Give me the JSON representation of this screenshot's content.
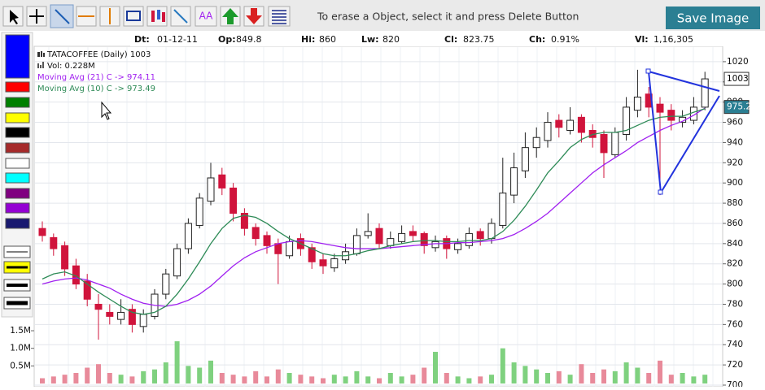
{
  "toolbar": {
    "hint": "To erase a Object, select it and press Delete Button",
    "button": "Save Image"
  },
  "info": [
    {
      "label": "Dt:",
      "value": "01-12-11"
    },
    {
      "label": "Op:",
      "value": "849.8"
    },
    {
      "label": "Hi:",
      "value": "860"
    },
    {
      "label": "Lw:",
      "value": "820"
    },
    {
      "label": "Cl:",
      "value": "823.75"
    },
    {
      "label": "Ch:",
      "value": "0.91%"
    },
    {
      "label": "Vl:",
      "value": "1,16,305"
    }
  ],
  "chart_data": {
    "type": "candlestick",
    "title": "TATACOFFEE (Daily) 1003",
    "volume_label": "Vol: 0.228M",
    "ylim": [
      700,
      1030
    ],
    "yticks": [
      700,
      720,
      740,
      760,
      780,
      800,
      820,
      840,
      860,
      880,
      900,
      920,
      940,
      960,
      980,
      1000,
      1020
    ],
    "grid": true,
    "up_color": "#222222",
    "down_color": "#d0143c",
    "last_price": 1003,
    "ma_marker": 975.2,
    "ohlc": [
      [
        855,
        862,
        842,
        848
      ],
      [
        846,
        850,
        828,
        835
      ],
      [
        838,
        842,
        808,
        815
      ],
      [
        818,
        825,
        795,
        800
      ],
      [
        803,
        810,
        778,
        785
      ],
      [
        780,
        790,
        745,
        775
      ],
      [
        772,
        780,
        760,
        768
      ],
      [
        765,
        785,
        760,
        772
      ],
      [
        775,
        780,
        752,
        760
      ],
      [
        758,
        775,
        752,
        770
      ],
      [
        768,
        795,
        765,
        790
      ],
      [
        790,
        815,
        785,
        810
      ],
      [
        808,
        840,
        805,
        835
      ],
      [
        835,
        865,
        830,
        860
      ],
      [
        858,
        890,
        855,
        885
      ],
      [
        882,
        920,
        878,
        905
      ],
      [
        908,
        915,
        888,
        895
      ],
      [
        895,
        900,
        862,
        870
      ],
      [
        870,
        875,
        848,
        855
      ],
      [
        856,
        860,
        838,
        845
      ],
      [
        848,
        852,
        830,
        838
      ],
      [
        840,
        845,
        800,
        830
      ],
      [
        828,
        848,
        825,
        842
      ],
      [
        845,
        850,
        828,
        835
      ],
      [
        836,
        840,
        815,
        822
      ],
      [
        824,
        830,
        810,
        818
      ],
      [
        816,
        830,
        812,
        825
      ],
      [
        824,
        840,
        820,
        832
      ],
      [
        830,
        855,
        828,
        848
      ],
      [
        848,
        870,
        845,
        852
      ],
      [
        855,
        860,
        835,
        840
      ],
      [
        838,
        852,
        835,
        845
      ],
      [
        842,
        858,
        840,
        850
      ],
      [
        852,
        858,
        842,
        848
      ],
      [
        850,
        852,
        830,
        838
      ],
      [
        836,
        848,
        832,
        842
      ],
      [
        845,
        848,
        825,
        835
      ],
      [
        834,
        845,
        830,
        840
      ],
      [
        838,
        856,
        835,
        850
      ],
      [
        852,
        855,
        838,
        845
      ],
      [
        845,
        865,
        840,
        860
      ],
      [
        858,
        925,
        855,
        890
      ],
      [
        888,
        930,
        880,
        915
      ],
      [
        912,
        950,
        905,
        935
      ],
      [
        935,
        955,
        925,
        945
      ],
      [
        942,
        970,
        935,
        960
      ],
      [
        962,
        968,
        945,
        955
      ],
      [
        952,
        975,
        948,
        962
      ],
      [
        965,
        968,
        940,
        950
      ],
      [
        952,
        958,
        935,
        945
      ],
      [
        948,
        952,
        905,
        930
      ],
      [
        928,
        955,
        925,
        950
      ],
      [
        948,
        985,
        942,
        975
      ],
      [
        972,
        1012,
        965,
        985
      ],
      [
        988,
        995,
        965,
        975
      ],
      [
        978,
        985,
        888,
        970
      ],
      [
        972,
        978,
        952,
        962
      ],
      [
        960,
        972,
        955,
        965
      ],
      [
        962,
        985,
        958,
        975
      ],
      [
        975,
        1010,
        972,
        1003
      ]
    ],
    "series": [
      {
        "name": "Moving Avg (21) C -> 974.11",
        "color": "#a020f0",
        "values": [
          800,
          803,
          805,
          806,
          804,
          800,
          796,
          790,
          785,
          781,
          779,
          778,
          780,
          784,
          790,
          798,
          808,
          818,
          826,
          832,
          836,
          840,
          842,
          843,
          842,
          840,
          838,
          836,
          835,
          835,
          835,
          836,
          837,
          838,
          839,
          840,
          840,
          841,
          841,
          842,
          843,
          845,
          849,
          855,
          862,
          870,
          880,
          890,
          900,
          910,
          918,
          925,
          932,
          940,
          946,
          952,
          957,
          961,
          967,
          974.11
        ]
      },
      {
        "name": "Moving Avg (10) C -> 973.49",
        "color": "#2e8b57",
        "values": [
          805,
          810,
          812,
          808,
          800,
          792,
          785,
          778,
          772,
          770,
          772,
          778,
          790,
          805,
          822,
          840,
          855,
          865,
          868,
          866,
          860,
          852,
          845,
          840,
          835,
          830,
          828,
          828,
          830,
          833,
          835,
          838,
          840,
          842,
          843,
          843,
          842,
          842,
          843,
          843,
          845,
          852,
          863,
          877,
          893,
          910,
          922,
          935,
          943,
          948,
          950,
          950,
          952,
          957,
          962,
          965,
          966,
          966,
          970,
          973.49
        ]
      }
    ],
    "volume": {
      "ylim": [
        0,
        1.6
      ],
      "yticks": [
        {
          "value": 0.5,
          "label": "0.5M"
        },
        {
          "value": 1,
          "label": "1.0M"
        },
        {
          "value": 1.5,
          "label": "1.5M"
        }
      ],
      "up_color": "#7fd17f",
      "down_color": "#e88a9a",
      "values": [
        0.15,
        0.2,
        0.25,
        0.3,
        0.45,
        0.55,
        0.3,
        0.25,
        0.2,
        0.35,
        0.4,
        0.6,
        1.2,
        0.5,
        0.45,
        0.65,
        0.3,
        0.25,
        0.2,
        0.35,
        0.2,
        0.4,
        0.3,
        0.25,
        0.2,
        0.15,
        0.25,
        0.2,
        0.35,
        0.2,
        0.15,
        0.3,
        0.2,
        0.25,
        0.45,
        0.9,
        0.3,
        0.2,
        0.15,
        0.2,
        0.25,
        1.0,
        0.6,
        0.5,
        0.4,
        0.3,
        0.35,
        0.25,
        0.55,
        0.3,
        0.4,
        0.35,
        0.6,
        0.45,
        0.3,
        0.65,
        0.25,
        0.3,
        0.2,
        0.25
      ]
    }
  }
}
